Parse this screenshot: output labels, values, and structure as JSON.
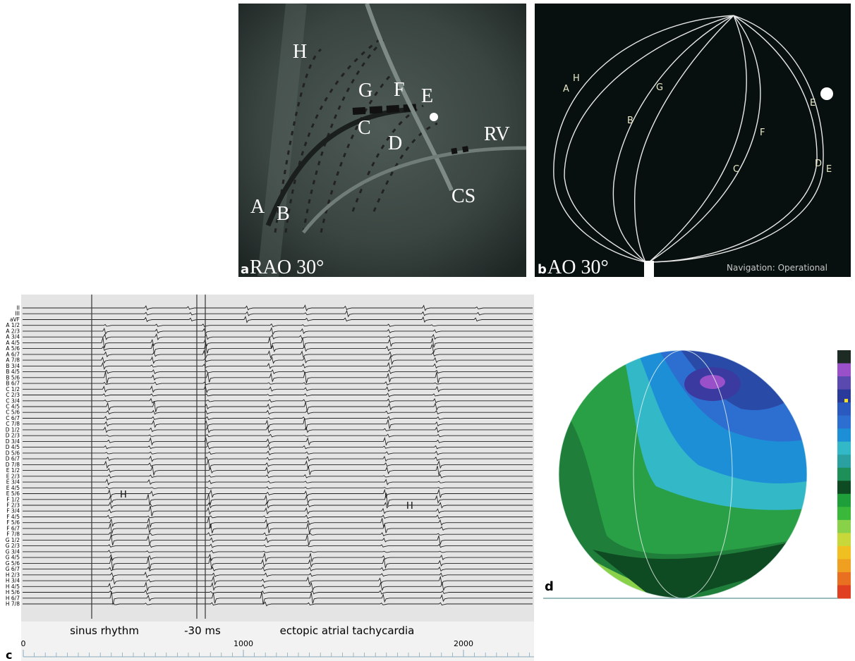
{
  "panel_a": {
    "label": "a",
    "view": "RAO 30°",
    "markers": [
      "H",
      "G",
      "F",
      "E",
      "C",
      "D",
      "RV",
      "A",
      "B",
      "CS"
    ]
  },
  "panel_b": {
    "label": "b",
    "view": "AO 30°",
    "markers": [
      "A",
      "H",
      "G",
      "B",
      "C",
      "F",
      "E",
      "E",
      "D"
    ],
    "status": "Navigation: Operational"
  },
  "panel_c": {
    "label": "c",
    "channels": [
      "II",
      "III",
      "aVF",
      "A 1/2",
      "A 2/3",
      "A 3/4",
      "A 4/5",
      "A 5/6",
      "A 6/7",
      "A 7/8",
      "B 3/4",
      "B 4/5",
      "B 5/6",
      "B 6/7",
      "C 1/2",
      "C 2/3",
      "C 3/4",
      "C 4/5",
      "C 5/6",
      "C 6/7",
      "C 7/8",
      "D 1/2",
      "D 2/3",
      "D 3/4",
      "D 4/5",
      "D 5/6",
      "D 6/7",
      "D 7/8",
      "E 1/2",
      "E 2/3",
      "E 3/4",
      "E 4/5",
      "E 5/6",
      "F 1/2",
      "F 2/3",
      "F 3/4",
      "F 4/5",
      "F 5/6",
      "F 6/7",
      "F 7/8",
      "G 1/2",
      "G 2/3",
      "G 3/4",
      "G 4/5",
      "G 5/6",
      "G 6/7",
      "H 2/3",
      "H 3/4",
      "H 4/5",
      "H 5/6",
      "H 6/7",
      "H 7/8"
    ],
    "annotations": [
      "H",
      "H",
      "sinus rhythm",
      "-30 ms",
      "ectopic atrial tachycardia"
    ],
    "ticks": [
      0,
      1000,
      2000
    ]
  },
  "panel_d": {
    "label": "d"
  }
}
